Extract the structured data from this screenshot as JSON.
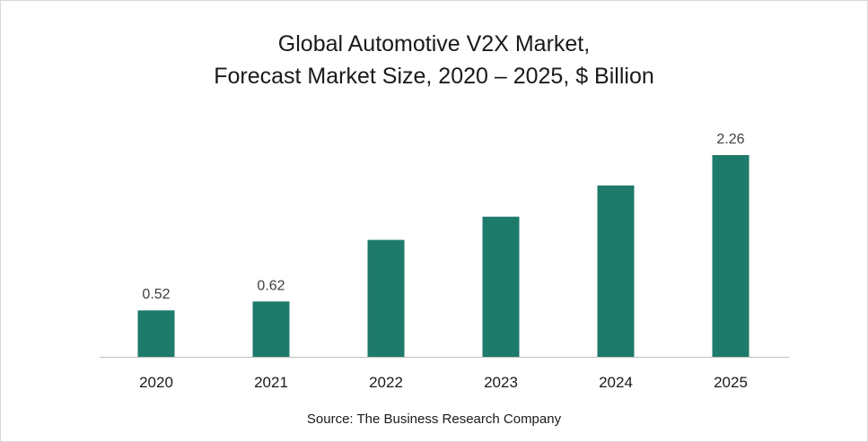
{
  "chart_data": {
    "type": "bar",
    "title_line1": "Global Automotive V2X Market,",
    "title_line2": "Forecast Market Size, 2020 – 2025, $ Billion",
    "categories": [
      "2020",
      "2021",
      "2022",
      "2023",
      "2024",
      "2025"
    ],
    "values": [
      0.52,
      0.62,
      1.31,
      1.57,
      1.92,
      2.26
    ],
    "data_labels": [
      "0.52",
      "0.62",
      "",
      "",
      "",
      "2.26"
    ],
    "bar_color": "#1e7a6a",
    "ylim": [
      0,
      2.3
    ],
    "grid": false,
    "legend": "none",
    "xlabel": "",
    "ylabel": "",
    "source": "Source: The Business Research Company"
  }
}
